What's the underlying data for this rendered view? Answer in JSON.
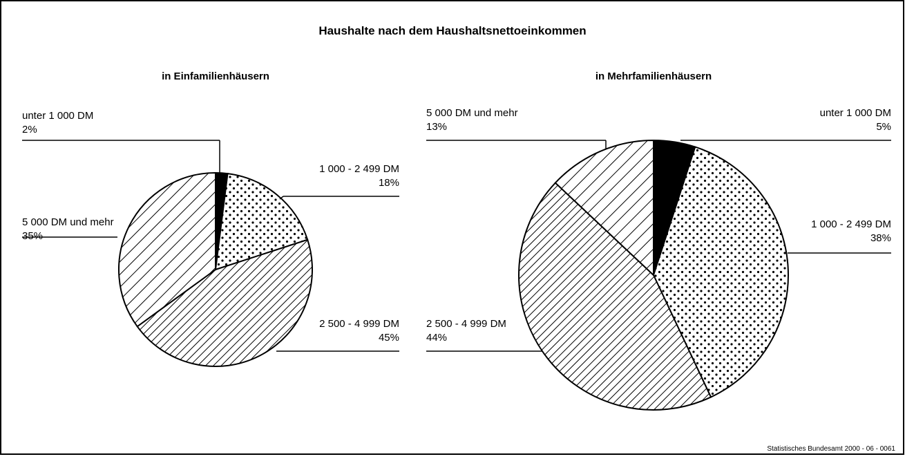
{
  "title": "Haushalte nach dem Haushaltsnettoeinkommen",
  "source": "Statistisches Bundesamt 2000 - 06 - 0061",
  "chart_data": [
    {
      "type": "pie",
      "title": "in Einfamilienhäusern",
      "categories": [
        "unter 1 000 DM",
        "1 000 - 2 499 DM",
        "2 500 - 4 999 DM",
        "5 000 DM und mehr"
      ],
      "values": [
        2,
        18,
        45,
        35
      ],
      "value_labels": [
        "2%",
        "18%",
        "45%",
        "35%"
      ],
      "patterns": [
        "solid",
        "dots",
        "hatch-dense",
        "hatch"
      ]
    },
    {
      "type": "pie",
      "title": "in Mehrfamilienhäusern",
      "categories": [
        "unter 1 000 DM",
        "1 000 - 2 499 DM",
        "2 500 - 4 999 DM",
        "5 000 DM und mehr"
      ],
      "values": [
        5,
        38,
        44,
        13
      ],
      "value_labels": [
        "5%",
        "38%",
        "44%",
        "13%"
      ],
      "patterns": [
        "solid",
        "dots",
        "hatch-dense",
        "hatch"
      ]
    }
  ]
}
